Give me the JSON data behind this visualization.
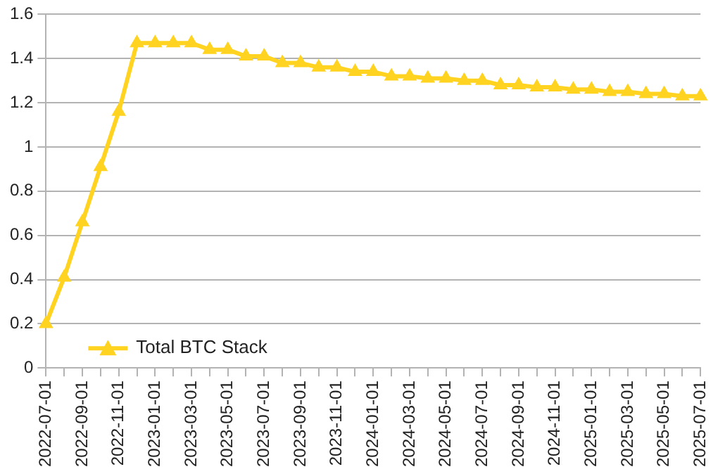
{
  "chart_data": {
    "type": "line",
    "categories": [
      "2022-07-01",
      null,
      "2022-09-01",
      null,
      "2022-11-01",
      null,
      "2023-01-01",
      null,
      "2023-03-01",
      null,
      "2023-05-01",
      null,
      "2023-07-01",
      null,
      "2023-09-01",
      null,
      "2023-11-01",
      null,
      "2024-01-01",
      null,
      "2024-03-01",
      null,
      "2024-05-01",
      null,
      "2024-07-01",
      null,
      "2024-09-01",
      null,
      "2024-11-01",
      null,
      "2025-01-01",
      null,
      "2025-03-01",
      null,
      "2025-05-01",
      null,
      "2025-07-01"
    ],
    "series": [
      {
        "name": "Total BTC Stack",
        "color": "#ffd320",
        "values": [
          0.2,
          0.41,
          0.66,
          0.91,
          1.16,
          1.47,
          1.47,
          1.47,
          1.47,
          1.44,
          1.44,
          1.41,
          1.41,
          1.38,
          1.38,
          1.36,
          1.36,
          1.34,
          1.34,
          1.32,
          1.32,
          1.31,
          1.31,
          1.3,
          1.3,
          1.28,
          1.28,
          1.27,
          1.27,
          1.26,
          1.26,
          1.25,
          1.25,
          1.24,
          1.24,
          1.23,
          1.23
        ]
      }
    ],
    "ylim": [
      0,
      1.6
    ],
    "yticks": [
      0,
      0.2,
      0.4,
      0.6,
      0.8,
      1,
      1.2,
      1.4,
      1.6
    ],
    "grid": "y",
    "legend": "bottom left",
    "marker": "triangle",
    "line_style": "solid"
  }
}
